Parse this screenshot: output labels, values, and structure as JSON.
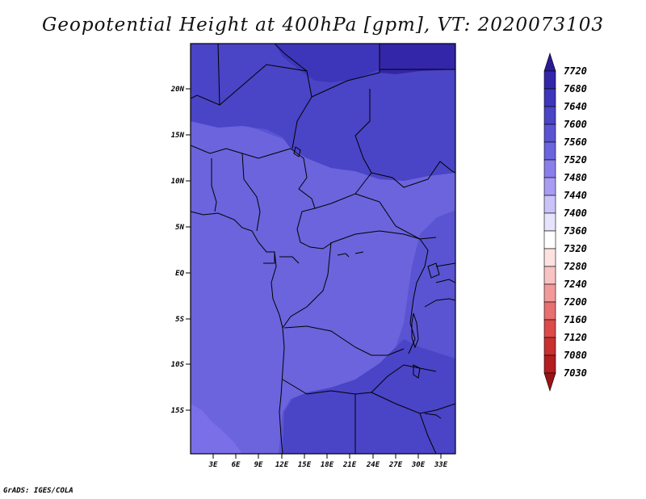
{
  "title": "Geopotential Height at 400hPa [gpm], VT: 2020073103",
  "footer": "GrADS: IGES/COLA",
  "map": {
    "lat_labels": [
      "20N",
      "15N",
      "10N",
      "5N",
      "EQ",
      "5S",
      "10S",
      "15S"
    ],
    "lon_labels": [
      "3E",
      "6E",
      "9E",
      "12E",
      "15E",
      "18E",
      "21E",
      "24E",
      "27E",
      "30E",
      "33E"
    ]
  },
  "colorbar": {
    "levels": [
      "7720",
      "7680",
      "7640",
      "7600",
      "7560",
      "7520",
      "7480",
      "7440",
      "7400",
      "7360",
      "7320",
      "7280",
      "7240",
      "7200",
      "7160",
      "7120",
      "7080",
      "7030"
    ],
    "colors": [
      "#2a1a96",
      "#3326a8",
      "#3d36ba",
      "#4a44c6",
      "#5a54d2",
      "#6b64dc",
      "#8a7fea",
      "#a89cf2",
      "#c9c3f8",
      "#e6e3fc",
      "#ffffff",
      "#fde2e2",
      "#f9c3c3",
      "#f29a9a",
      "#e87070",
      "#dc4a4a",
      "#c93030",
      "#b31e1e",
      "#9a1414"
    ]
  },
  "field_colors": {
    "lowest": "#7a6fe6",
    "low": "#6b64dc",
    "mid": "#5a54d2",
    "high": "#4a44c6",
    "higher": "#3d36ba",
    "highest": "#3326a8"
  }
}
